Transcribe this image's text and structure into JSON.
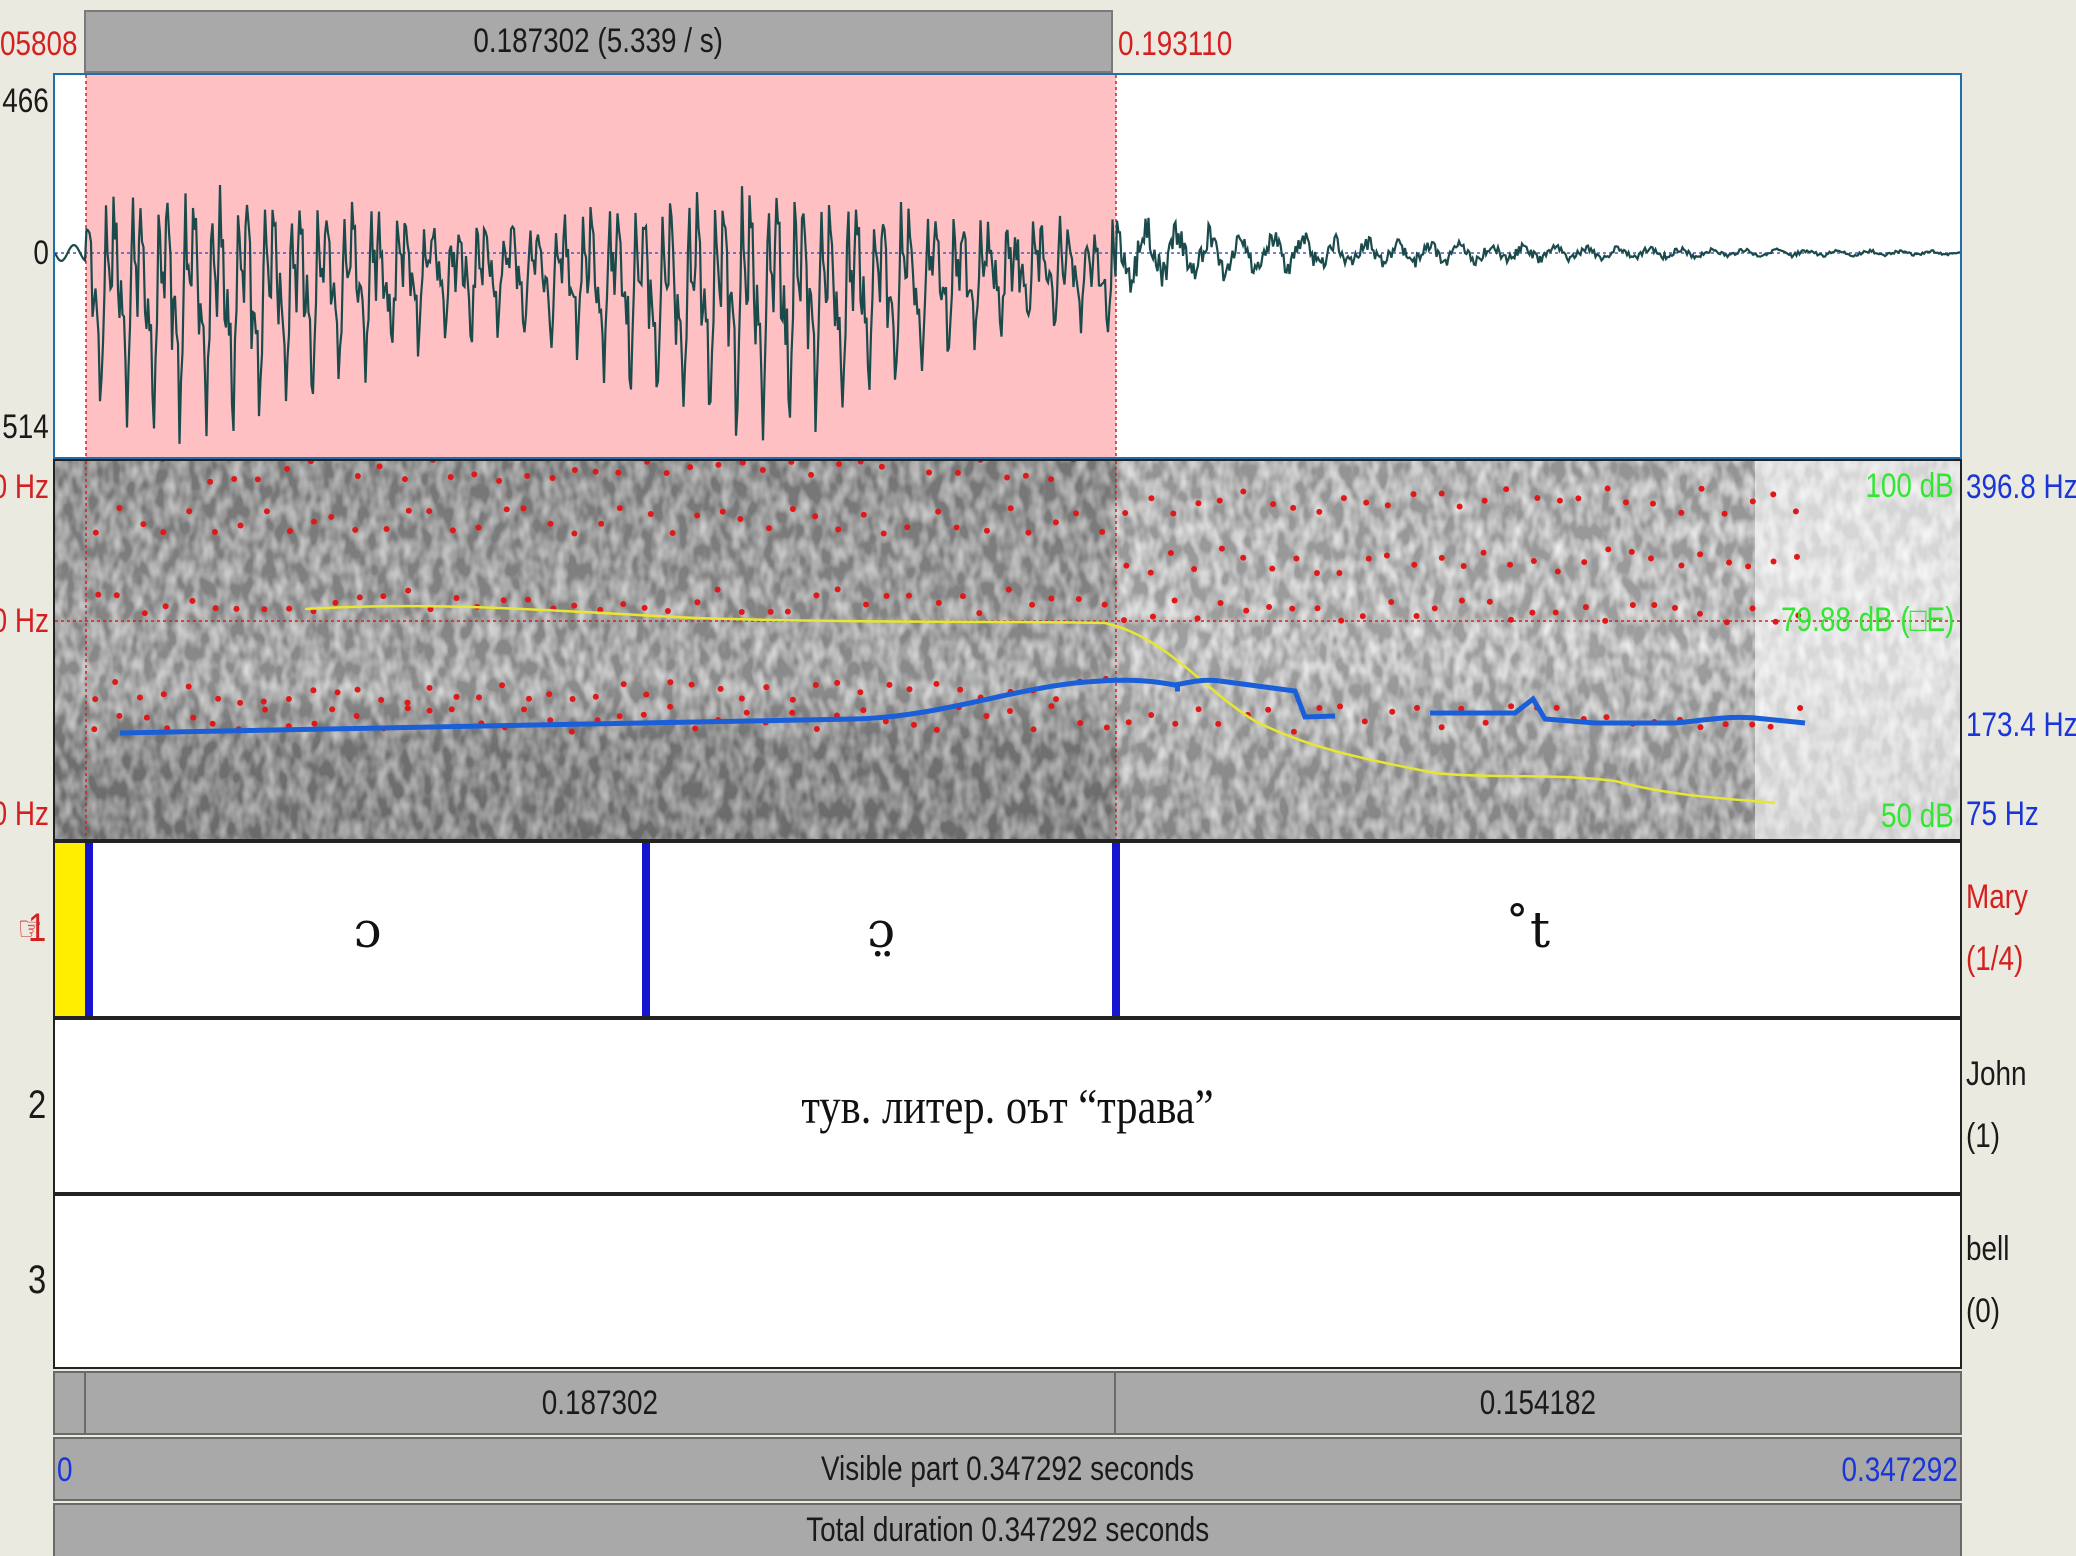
{
  "selection": {
    "start_label": "05808",
    "duration_label": "0.187302 (5.339 / s)",
    "end_label": "0.193110"
  },
  "waveform": {
    "top_label": "466",
    "zero_label": "0",
    "bottom_label": "514"
  },
  "spectrogram": {
    "left_top_label": "0 Hz",
    "left_mid_label": "0 Hz",
    "left_bottom_label": "0 Hz",
    "intensity_max_label": "100 dB",
    "intensity_cursor_label": "79.88 dB (□E)",
    "intensity_min_label": "50 dB",
    "pitch_max_label": "396.8 Hz",
    "pitch_cursor_label": "173.4 Hz",
    "pitch_min_label": "75 Hz",
    "colors": {
      "pitch": "#1a5fd8",
      "intensity": "#e6e633",
      "formants": "#e01818",
      "cursor": "#d42020"
    }
  },
  "tiers": [
    {
      "number": "1",
      "pointer_icon": "☞",
      "name": "Mary",
      "count": "(1/4)",
      "intervals": [
        "ɔ",
        "ɔ̤",
        "̊t"
      ]
    },
    {
      "number": "2",
      "name": "John",
      "count": "(1)",
      "text": "тув. литер. оът “трава”"
    },
    {
      "number": "3",
      "name": "bell",
      "count": "(0)"
    }
  ],
  "duration_bar": {
    "left_segment": "0.187302",
    "right_segment": "0.154182"
  },
  "visible_bar": {
    "start": "0",
    "label": "Visible part 0.347292 seconds",
    "end": "0.347292"
  },
  "total_bar": {
    "label": "Total duration 0.347292 seconds"
  }
}
